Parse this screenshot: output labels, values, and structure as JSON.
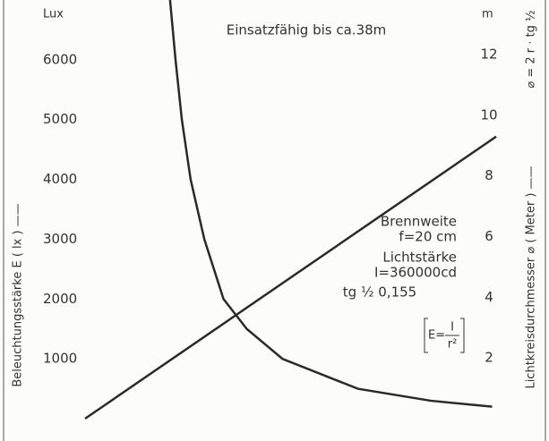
{
  "chart_data": {
    "type": "line",
    "y_label": "Beleuchtungsstärke E ( lx ) ——",
    "y2_label": "Lichtkreisdurchmesser ⌀ ( Meter ) ——",
    "y_unit": "Lux",
    "y2_unit": "m",
    "y2_formula": "⌀ = 2 r · tg ½",
    "annotations": {
      "range": "Einsatzfähig bis ca.38m",
      "focal_title": "Brennweite",
      "focal": "f=20 cm",
      "intensity_title": "Lichtstärke",
      "intensity": "I=360000cd",
      "tangent": "tg ½ 0,155",
      "formula_lhs": "E=",
      "formula_num": "I",
      "formula_den": "r²"
    },
    "xlim": [
      0,
      33
    ],
    "ylim": [
      0,
      7000
    ],
    "yticks": [
      1000,
      2000,
      3000,
      4000,
      5000,
      6000
    ],
    "y2lim": [
      0,
      13.8
    ],
    "y2ticks": [
      2,
      4,
      6,
      8,
      10,
      12
    ],
    "series": [
      {
        "name": "E",
        "color": "#2a2a2a",
        "x": [
          6.2,
          6.6,
          7.06,
          7.7,
          8.7,
          10.1,
          11.8,
          14.4,
          19.9,
          25.2,
          29.7
        ],
        "values": [
          7000,
          6000,
          5000,
          4000,
          3000,
          2000,
          1500,
          1000,
          500,
          300,
          200
        ]
      },
      {
        "name": "⌀",
        "color": "#2a2a2a",
        "axis": "y2",
        "x": [
          0,
          30
        ],
        "values": [
          0,
          9.3
        ]
      }
    ]
  }
}
